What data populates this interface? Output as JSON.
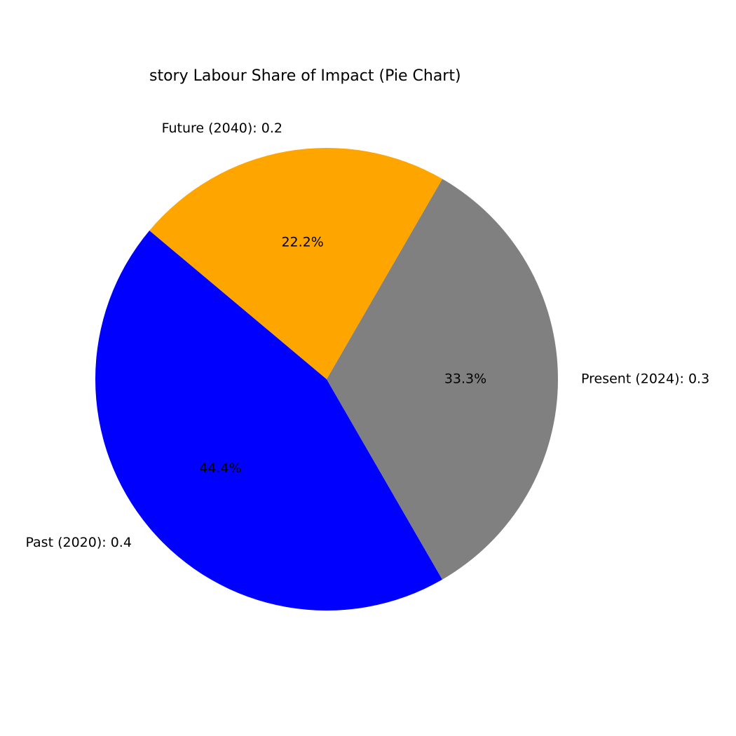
{
  "chart_data": {
    "type": "pie",
    "title": "story Labour Share of Impact (Pie Chart)",
    "slices": [
      {
        "name": "Past (2020)",
        "label": "Past (2020): 0.4",
        "value": 0.4,
        "percent_label": "44.4%",
        "color": "#0000ff"
      },
      {
        "name": "Present (2024)",
        "label": "Present (2024): 0.3",
        "value": 0.3,
        "percent_label": "33.3%",
        "color": "#808080"
      },
      {
        "name": "Future (2040)",
        "label": "Future (2040): 0.2",
        "value": 0.2,
        "percent_label": "22.2%",
        "color": "#ffa500"
      }
    ],
    "start_angle_deg": 140,
    "direction": "counterclockwise",
    "legend": "none"
  }
}
